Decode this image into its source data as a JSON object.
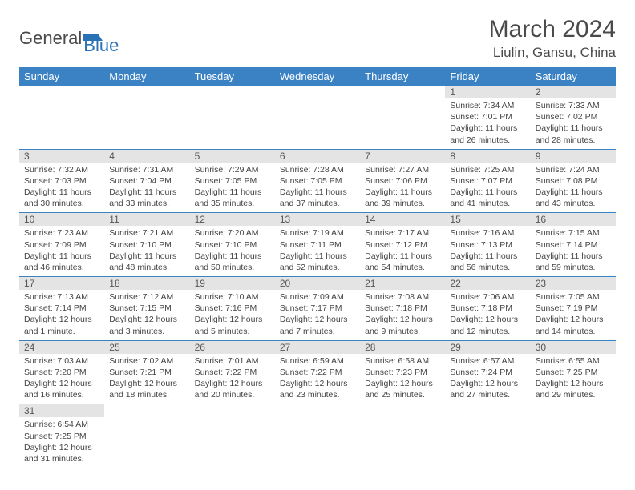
{
  "logo": {
    "part1": "General",
    "part2": "Blue"
  },
  "title": "March 2024",
  "location": "Liulin, Gansu, China",
  "colors": {
    "header_bg": "#3b82c4",
    "header_text": "#ffffff",
    "daynum_bg": "#e4e4e4",
    "row_divider": "#3b82c4",
    "body_text": "#444444",
    "title_text": "#4a4a4a"
  },
  "weekdays": [
    "Sunday",
    "Monday",
    "Tuesday",
    "Wednesday",
    "Thursday",
    "Friday",
    "Saturday"
  ],
  "weeks": [
    [
      null,
      null,
      null,
      null,
      null,
      {
        "n": "1",
        "sr": "Sunrise: 7:34 AM",
        "ss": "Sunset: 7:01 PM",
        "dl": "Daylight: 11 hours and 26 minutes."
      },
      {
        "n": "2",
        "sr": "Sunrise: 7:33 AM",
        "ss": "Sunset: 7:02 PM",
        "dl": "Daylight: 11 hours and 28 minutes."
      }
    ],
    [
      {
        "n": "3",
        "sr": "Sunrise: 7:32 AM",
        "ss": "Sunset: 7:03 PM",
        "dl": "Daylight: 11 hours and 30 minutes."
      },
      {
        "n": "4",
        "sr": "Sunrise: 7:31 AM",
        "ss": "Sunset: 7:04 PM",
        "dl": "Daylight: 11 hours and 33 minutes."
      },
      {
        "n": "5",
        "sr": "Sunrise: 7:29 AM",
        "ss": "Sunset: 7:05 PM",
        "dl": "Daylight: 11 hours and 35 minutes."
      },
      {
        "n": "6",
        "sr": "Sunrise: 7:28 AM",
        "ss": "Sunset: 7:05 PM",
        "dl": "Daylight: 11 hours and 37 minutes."
      },
      {
        "n": "7",
        "sr": "Sunrise: 7:27 AM",
        "ss": "Sunset: 7:06 PM",
        "dl": "Daylight: 11 hours and 39 minutes."
      },
      {
        "n": "8",
        "sr": "Sunrise: 7:25 AM",
        "ss": "Sunset: 7:07 PM",
        "dl": "Daylight: 11 hours and 41 minutes."
      },
      {
        "n": "9",
        "sr": "Sunrise: 7:24 AM",
        "ss": "Sunset: 7:08 PM",
        "dl": "Daylight: 11 hours and 43 minutes."
      }
    ],
    [
      {
        "n": "10",
        "sr": "Sunrise: 7:23 AM",
        "ss": "Sunset: 7:09 PM",
        "dl": "Daylight: 11 hours and 46 minutes."
      },
      {
        "n": "11",
        "sr": "Sunrise: 7:21 AM",
        "ss": "Sunset: 7:10 PM",
        "dl": "Daylight: 11 hours and 48 minutes."
      },
      {
        "n": "12",
        "sr": "Sunrise: 7:20 AM",
        "ss": "Sunset: 7:10 PM",
        "dl": "Daylight: 11 hours and 50 minutes."
      },
      {
        "n": "13",
        "sr": "Sunrise: 7:19 AM",
        "ss": "Sunset: 7:11 PM",
        "dl": "Daylight: 11 hours and 52 minutes."
      },
      {
        "n": "14",
        "sr": "Sunrise: 7:17 AM",
        "ss": "Sunset: 7:12 PM",
        "dl": "Daylight: 11 hours and 54 minutes."
      },
      {
        "n": "15",
        "sr": "Sunrise: 7:16 AM",
        "ss": "Sunset: 7:13 PM",
        "dl": "Daylight: 11 hours and 56 minutes."
      },
      {
        "n": "16",
        "sr": "Sunrise: 7:15 AM",
        "ss": "Sunset: 7:14 PM",
        "dl": "Daylight: 11 hours and 59 minutes."
      }
    ],
    [
      {
        "n": "17",
        "sr": "Sunrise: 7:13 AM",
        "ss": "Sunset: 7:14 PM",
        "dl": "Daylight: 12 hours and 1 minute."
      },
      {
        "n": "18",
        "sr": "Sunrise: 7:12 AM",
        "ss": "Sunset: 7:15 PM",
        "dl": "Daylight: 12 hours and 3 minutes."
      },
      {
        "n": "19",
        "sr": "Sunrise: 7:10 AM",
        "ss": "Sunset: 7:16 PM",
        "dl": "Daylight: 12 hours and 5 minutes."
      },
      {
        "n": "20",
        "sr": "Sunrise: 7:09 AM",
        "ss": "Sunset: 7:17 PM",
        "dl": "Daylight: 12 hours and 7 minutes."
      },
      {
        "n": "21",
        "sr": "Sunrise: 7:08 AM",
        "ss": "Sunset: 7:18 PM",
        "dl": "Daylight: 12 hours and 9 minutes."
      },
      {
        "n": "22",
        "sr": "Sunrise: 7:06 AM",
        "ss": "Sunset: 7:18 PM",
        "dl": "Daylight: 12 hours and 12 minutes."
      },
      {
        "n": "23",
        "sr": "Sunrise: 7:05 AM",
        "ss": "Sunset: 7:19 PM",
        "dl": "Daylight: 12 hours and 14 minutes."
      }
    ],
    [
      {
        "n": "24",
        "sr": "Sunrise: 7:03 AM",
        "ss": "Sunset: 7:20 PM",
        "dl": "Daylight: 12 hours and 16 minutes."
      },
      {
        "n": "25",
        "sr": "Sunrise: 7:02 AM",
        "ss": "Sunset: 7:21 PM",
        "dl": "Daylight: 12 hours and 18 minutes."
      },
      {
        "n": "26",
        "sr": "Sunrise: 7:01 AM",
        "ss": "Sunset: 7:22 PM",
        "dl": "Daylight: 12 hours and 20 minutes."
      },
      {
        "n": "27",
        "sr": "Sunrise: 6:59 AM",
        "ss": "Sunset: 7:22 PM",
        "dl": "Daylight: 12 hours and 23 minutes."
      },
      {
        "n": "28",
        "sr": "Sunrise: 6:58 AM",
        "ss": "Sunset: 7:23 PM",
        "dl": "Daylight: 12 hours and 25 minutes."
      },
      {
        "n": "29",
        "sr": "Sunrise: 6:57 AM",
        "ss": "Sunset: 7:24 PM",
        "dl": "Daylight: 12 hours and 27 minutes."
      },
      {
        "n": "30",
        "sr": "Sunrise: 6:55 AM",
        "ss": "Sunset: 7:25 PM",
        "dl": "Daylight: 12 hours and 29 minutes."
      }
    ],
    [
      {
        "n": "31",
        "sr": "Sunrise: 6:54 AM",
        "ss": "Sunset: 7:25 PM",
        "dl": "Daylight: 12 hours and 31 minutes."
      },
      null,
      null,
      null,
      null,
      null,
      null
    ]
  ]
}
